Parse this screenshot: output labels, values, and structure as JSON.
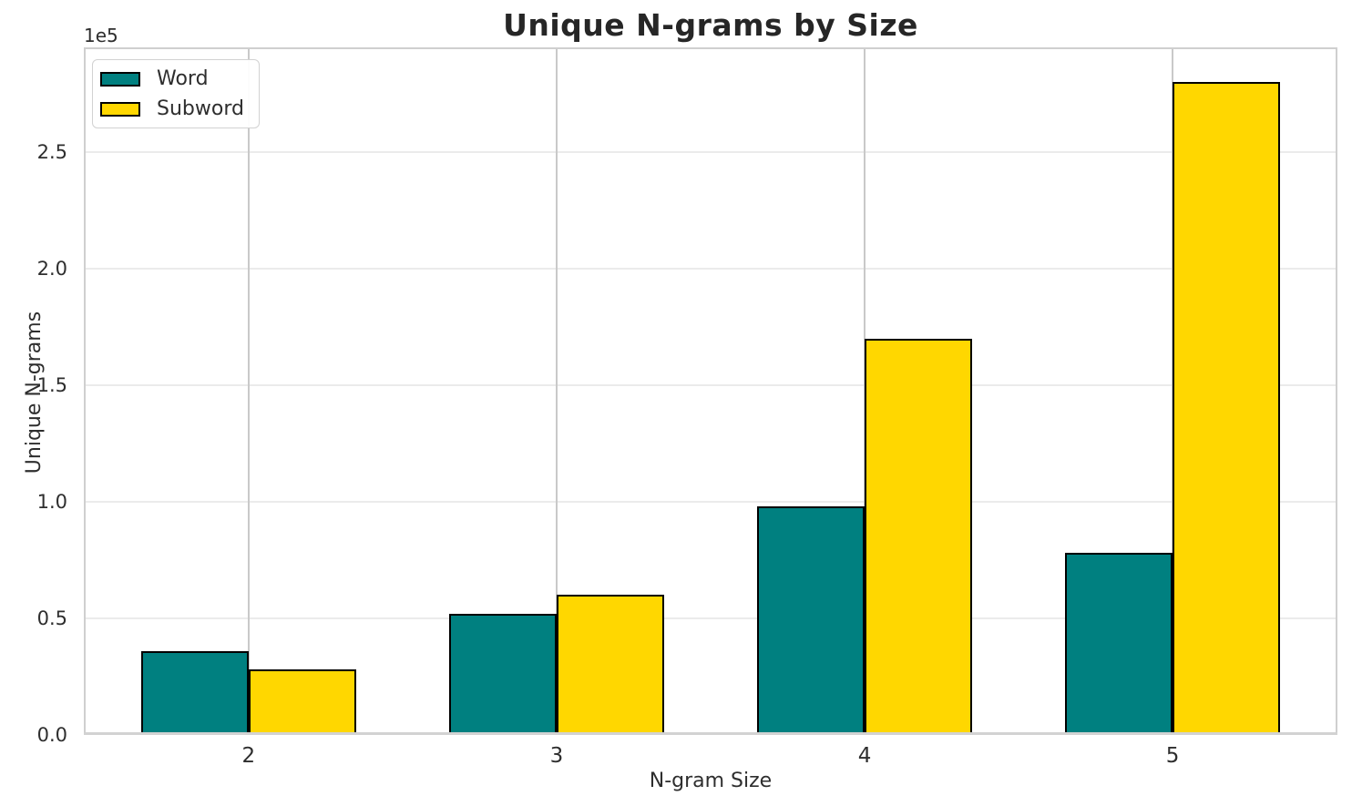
{
  "figure": {
    "title": "Unique N-grams by Size",
    "xlabel": "N-gram Size",
    "ylabel": "Unique N-grams",
    "offset_text": "1e5",
    "background": "#ffffff"
  },
  "chart_data": {
    "type": "bar",
    "title": "Unique N-grams by Size",
    "xlabel": "N-gram Size",
    "ylabel": "Unique N-grams",
    "categories": [
      2,
      3,
      4,
      5
    ],
    "series": [
      {
        "name": "Word",
        "color": "#008080",
        "values": [
          36000,
          52000,
          98000,
          78000
        ]
      },
      {
        "name": "Subword",
        "color": "#FFD700",
        "values": [
          28000,
          60000,
          170000,
          280000
        ]
      }
    ],
    "bar_edge_color": "#000000",
    "bar_width": 0.35,
    "xlim": [
      1.465,
      5.535
    ],
    "ylim": [
      0,
      295000
    ],
    "yticks": {
      "values": [
        0,
        50000,
        100000,
        150000,
        200000,
        250000
      ],
      "labels": [
        "0.0",
        "0.5",
        "1.0",
        "1.5",
        "2.0",
        "2.5"
      ],
      "scale_label": "1e5"
    },
    "grid": {
      "horizontal": true,
      "vertical": true
    },
    "legend": {
      "position": "upper-left",
      "entries": [
        "Word",
        "Subword"
      ]
    }
  }
}
